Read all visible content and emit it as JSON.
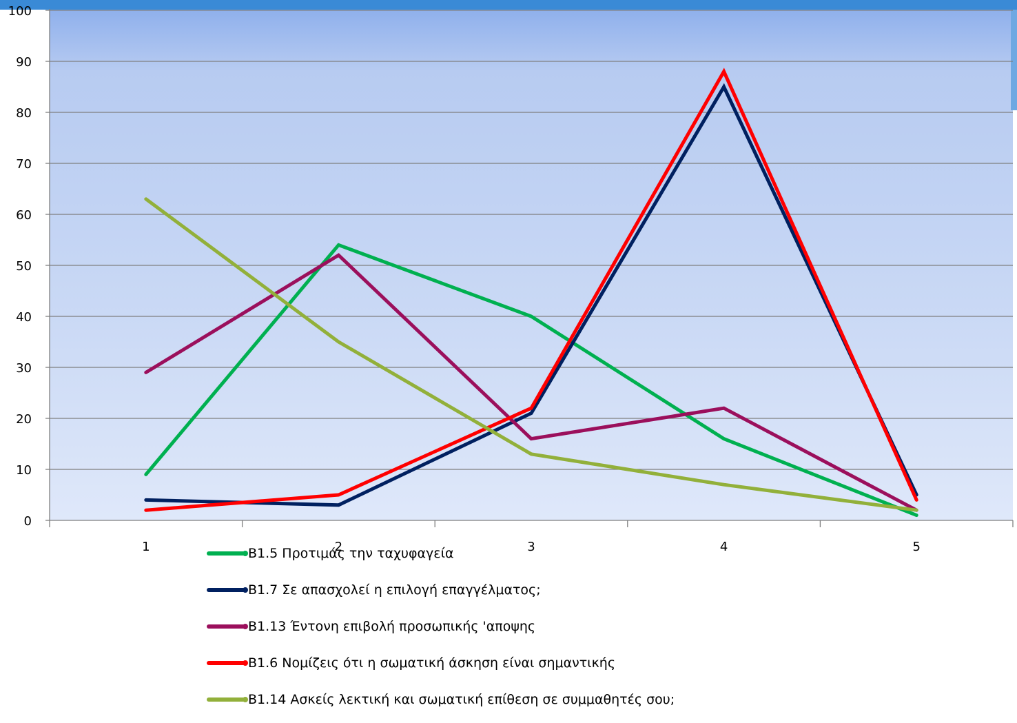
{
  "chart_data": {
    "type": "line",
    "x": [
      1,
      2,
      3,
      4,
      5
    ],
    "ylim": [
      0,
      100
    ],
    "yticks": [
      0,
      10,
      20,
      30,
      40,
      50,
      60,
      70,
      80,
      90,
      100
    ],
    "grid": true,
    "legend_position": "bottom",
    "series": [
      {
        "name": "B1.5 Προτιμάς την ταχυφαγεία",
        "color": "#00b050",
        "values": [
          9,
          54,
          40,
          16,
          1
        ]
      },
      {
        "name": "B1.7 Σε απασχολεί η επιλογή επαγγέλματος;",
        "color": "#002060",
        "values": [
          4,
          3,
          21,
          85,
          5
        ]
      },
      {
        "name": "B1.13 Έντονη επιβολή προσωπικής 'αποψης",
        "color": "#9b0f5c",
        "values": [
          29,
          52,
          16,
          22,
          2
        ]
      },
      {
        "name": "B1.6 Νομίζεις ότι η σωματική άσκηση είναι σημαντικής",
        "color": "#ff0000",
        "values": [
          2,
          5,
          22,
          88,
          4
        ]
      },
      {
        "name": "B1.14  Ασκείς λεκτική και σωματική επίθεση σε συμμαθητές σου;",
        "color": "#92b03a",
        "values": [
          63,
          35,
          13,
          7,
          2
        ]
      }
    ]
  }
}
